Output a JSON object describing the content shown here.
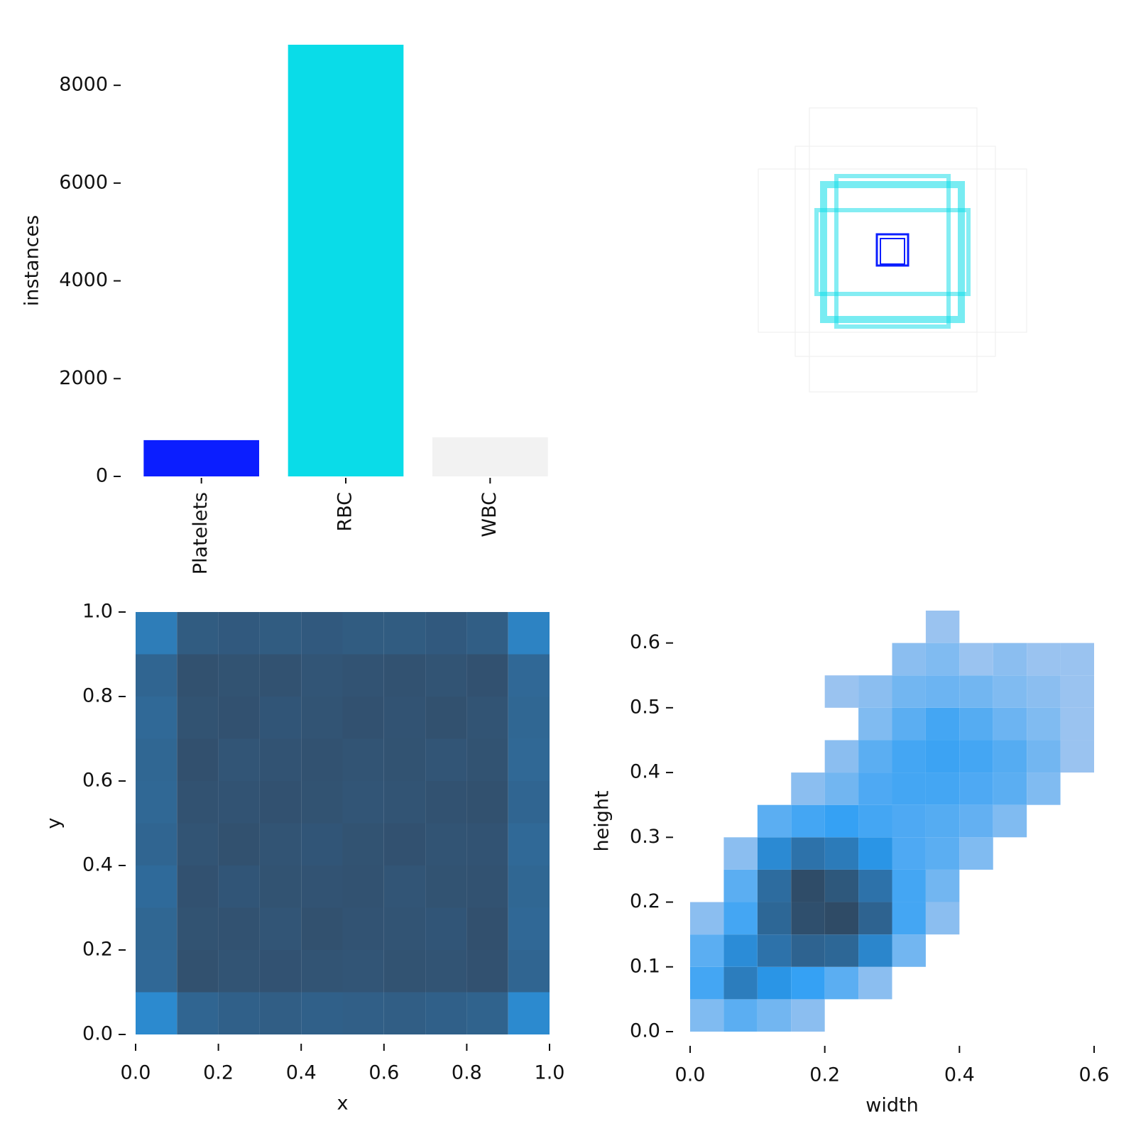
{
  "chart_data": [
    {
      "type": "bar",
      "y_label": "instances",
      "categories": [
        "Platelets",
        "RBC",
        "WBC"
      ],
      "values": [
        742,
        8830,
        801
      ],
      "colors": [
        "#0b1eff",
        "#0adce8",
        "#f2f2f2"
      ],
      "ylim": [
        0,
        8830
      ],
      "yticks": [
        0,
        2000,
        4000,
        6000,
        8000
      ]
    },
    {
      "type": "histogram2d",
      "x_label": "x",
      "y_label": "y",
      "xbins": [
        0,
        0.1,
        0.2,
        0.3,
        0.4,
        0.5,
        0.6,
        0.7,
        0.8,
        0.9,
        1
      ],
      "ybins": [
        0,
        0.1,
        0.2,
        0.3,
        0.4,
        0.5,
        0.6,
        0.7,
        0.8,
        0.9,
        1
      ],
      "counts": [
        [
          20,
          60,
          70,
          75,
          70,
          72,
          75,
          70,
          65,
          20
        ],
        [
          55,
          110,
          100,
          105,
          100,
          98,
          104,
          100,
          108,
          60
        ],
        [
          58,
          104,
          106,
          98,
          110,
          102,
          100,
          96,
          112,
          55
        ],
        [
          52,
          108,
          96,
          104,
          102,
          106,
          98,
          104,
          106,
          58
        ],
        [
          60,
          100,
          110,
          100,
          96,
          104,
          108,
          100,
          102,
          54
        ],
        [
          56,
          106,
          102,
          108,
          104,
          98,
          100,
          106,
          110,
          60
        ],
        [
          58,
          112,
          98,
          102,
          106,
          100,
          104,
          98,
          104,
          56
        ],
        [
          54,
          104,
          108,
          96,
          100,
          108,
          102,
          110,
          100,
          58
        ],
        [
          60,
          110,
          104,
          106,
          98,
          102,
          106,
          100,
          108,
          55
        ],
        [
          30,
          80,
          85,
          80,
          85,
          80,
          80,
          85,
          75,
          25
        ]
      ],
      "cmap": [
        "#a9c6f2",
        "#2aa2f6",
        "#32506e"
      ],
      "log_color": true,
      "xlim": [
        0,
        1
      ],
      "ylim": [
        0,
        1
      ],
      "xticks": [
        {
          "value": 0,
          "label": "0.0"
        },
        0.2,
        0.4,
        0.6,
        0.8,
        {
          "value": 1,
          "label": "1.0"
        }
      ],
      "yticks": [
        {
          "value": 0,
          "label": "0.0"
        },
        0.2,
        0.4,
        0.6,
        0.8,
        {
          "value": 1,
          "label": "1.0"
        }
      ]
    },
    {
      "type": "histogram2d",
      "x_label": "width",
      "y_label": "height",
      "xbins": [
        0,
        0.05,
        0.1,
        0.15,
        0.2,
        0.25,
        0.3,
        0.35,
        0.4,
        0.45,
        0.5,
        0.55,
        0.6
      ],
      "ybins": [
        0,
        0.05,
        0.1,
        0.15,
        0.2,
        0.25,
        0.3,
        0.35,
        0.4,
        0.45,
        0.5,
        0.55,
        0.6,
        0.65
      ],
      "counts": [
        [
          3,
          10,
          5,
          2,
          0,
          0,
          0,
          0,
          0,
          0,
          0,
          0
        ],
        [
          20,
          180,
          60,
          30,
          10,
          2,
          0,
          0,
          0,
          0,
          0,
          0
        ],
        [
          10,
          90,
          300,
          600,
          500,
          120,
          5,
          0,
          0,
          0,
          0,
          0
        ],
        [
          2,
          20,
          500,
          1500,
          1800,
          600,
          20,
          2,
          0,
          0,
          0,
          0
        ],
        [
          0,
          10,
          400,
          1700,
          1000,
          300,
          20,
          5,
          0,
          0,
          0,
          0
        ],
        [
          0,
          2,
          100,
          300,
          200,
          60,
          15,
          10,
          3,
          0,
          0,
          0
        ],
        [
          0,
          0,
          10,
          20,
          30,
          20,
          15,
          12,
          8,
          3,
          0,
          0
        ],
        [
          0,
          0,
          0,
          2,
          5,
          15,
          20,
          20,
          15,
          10,
          3,
          0
        ],
        [
          0,
          0,
          0,
          0,
          2,
          10,
          20,
          25,
          20,
          12,
          5,
          1
        ],
        [
          0,
          0,
          0,
          0,
          0,
          3,
          10,
          20,
          12,
          6,
          3,
          1
        ],
        [
          0,
          0,
          0,
          0,
          1,
          2,
          5,
          6,
          5,
          3,
          2,
          1
        ],
        [
          0,
          0,
          0,
          0,
          0,
          0,
          2,
          3,
          1,
          2,
          1,
          1
        ],
        [
          0,
          0,
          0,
          0,
          0,
          0,
          0,
          1,
          0,
          0,
          0,
          0
        ]
      ],
      "cmap": [
        "#b3ccef",
        "#2a9df4",
        "#2f4b66"
      ],
      "log_color": true,
      "xlim": [
        0,
        0.6
      ],
      "ylim": [
        0,
        0.65
      ],
      "xticks": [
        {
          "value": 0,
          "label": "0.0"
        },
        0.2,
        0.4,
        0.6
      ],
      "yticks": [
        {
          "value": 0,
          "label": "0.0"
        },
        0.1,
        0.2,
        0.3,
        0.4,
        0.5,
        0.6
      ]
    }
  ]
}
